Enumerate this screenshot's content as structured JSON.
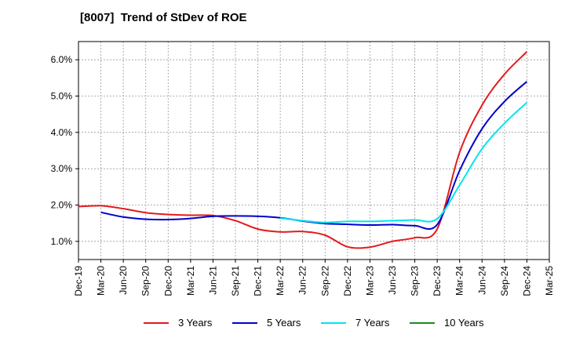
{
  "title": "[8007]  Trend of StDev of ROE",
  "chart_data": {
    "type": "line",
    "title": "[8007]  Trend of StDev of ROE",
    "xlabel": "",
    "ylabel": "",
    "x_tick_labels": [
      "Dec-19",
      "Mar-20",
      "Jun-20",
      "Sep-20",
      "Dec-20",
      "Mar-21",
      "Jun-21",
      "Sep-21",
      "Dec-21",
      "Mar-22",
      "Jun-22",
      "Sep-22",
      "Dec-22",
      "Mar-23",
      "Jun-23",
      "Sep-23",
      "Dec-23",
      "Mar-24",
      "Jun-24",
      "Sep-24",
      "Dec-24",
      "Mar-25"
    ],
    "y_tick_labels": [
      "1.0%",
      "2.0%",
      "3.0%",
      "4.0%",
      "5.0%",
      "6.0%"
    ],
    "y_ticks": [
      1.0,
      2.0,
      3.0,
      4.0,
      5.0,
      6.0
    ],
    "ylim": [
      0.5,
      6.5
    ],
    "grid": true,
    "legend_position": "bottom",
    "series": [
      {
        "name": "3 Years",
        "color": "#e41a1c",
        "points": [
          [
            "Dec-19",
            1.96
          ],
          [
            "Mar-20",
            1.98
          ],
          [
            "Jun-20",
            1.9
          ],
          [
            "Sep-20",
            1.79
          ],
          [
            "Dec-20",
            1.74
          ],
          [
            "Mar-21",
            1.72
          ],
          [
            "Jun-21",
            1.71
          ],
          [
            "Sep-21",
            1.57
          ],
          [
            "Dec-21",
            1.34
          ],
          [
            "Mar-22",
            1.26
          ],
          [
            "Jun-22",
            1.27
          ],
          [
            "Sep-22",
            1.17
          ],
          [
            "Dec-22",
            0.85
          ],
          [
            "Mar-23",
            0.84
          ],
          [
            "Jun-23",
            1.0
          ],
          [
            "Sep-23",
            1.1
          ],
          [
            "Dec-23",
            1.34
          ],
          [
            "Mar-24",
            3.45
          ],
          [
            "Jun-24",
            4.75
          ],
          [
            "Sep-24",
            5.6
          ],
          [
            "Dec-24",
            6.22
          ]
        ]
      },
      {
        "name": "5 Years",
        "color": "#0000cc",
        "points": [
          [
            "Mar-20",
            1.8
          ],
          [
            "Jun-20",
            1.67
          ],
          [
            "Sep-20",
            1.61
          ],
          [
            "Dec-20",
            1.6
          ],
          [
            "Mar-21",
            1.63
          ],
          [
            "Jun-21",
            1.69
          ],
          [
            "Sep-21",
            1.7
          ],
          [
            "Dec-21",
            1.69
          ],
          [
            "Mar-22",
            1.65
          ],
          [
            "Jun-22",
            1.56
          ],
          [
            "Sep-22",
            1.49
          ],
          [
            "Dec-22",
            1.47
          ],
          [
            "Mar-23",
            1.45
          ],
          [
            "Jun-23",
            1.46
          ],
          [
            "Sep-23",
            1.43
          ],
          [
            "Dec-23",
            1.46
          ],
          [
            "Mar-24",
            2.95
          ],
          [
            "Jun-24",
            4.1
          ],
          [
            "Sep-24",
            4.85
          ],
          [
            "Dec-24",
            5.4
          ]
        ]
      },
      {
        "name": "7 Years",
        "color": "#00e5ee",
        "points": [
          [
            "Mar-22",
            1.64
          ],
          [
            "Jun-22",
            1.57
          ],
          [
            "Sep-22",
            1.52
          ],
          [
            "Dec-22",
            1.55
          ],
          [
            "Mar-23",
            1.55
          ],
          [
            "Jun-23",
            1.57
          ],
          [
            "Sep-23",
            1.59
          ],
          [
            "Dec-23",
            1.62
          ],
          [
            "Mar-24",
            2.55
          ],
          [
            "Jun-24",
            3.55
          ],
          [
            "Sep-24",
            4.25
          ],
          [
            "Dec-24",
            4.82
          ]
        ]
      },
      {
        "name": "10 Years",
        "color": "#1e8b1e",
        "points": []
      }
    ]
  }
}
